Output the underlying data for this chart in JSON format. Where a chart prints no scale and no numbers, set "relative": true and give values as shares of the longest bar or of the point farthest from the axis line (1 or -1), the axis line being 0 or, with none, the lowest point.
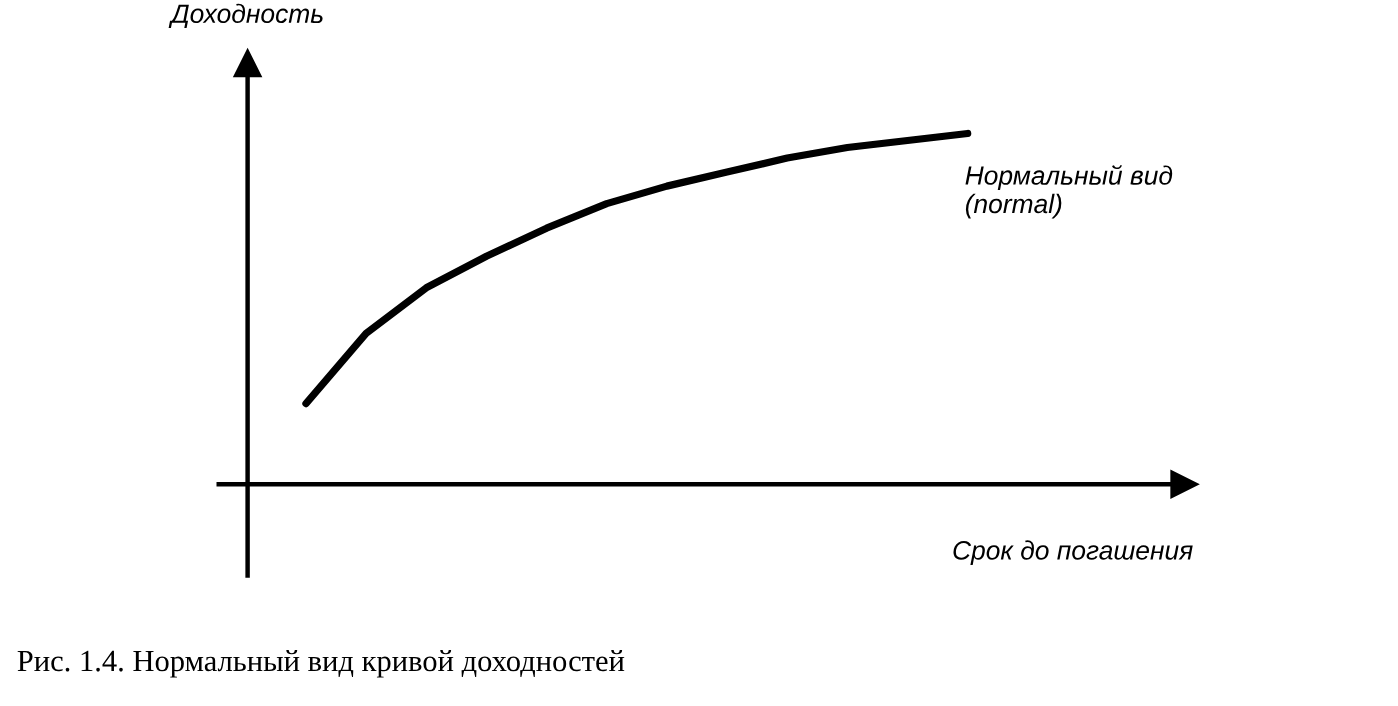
{
  "chart_data": {
    "type": "line",
    "relative": true,
    "ylabel": "Доходность",
    "xlabel": "Срок до погашения",
    "title": "Рис. 1.4. Нормальный вид кривой доходностей",
    "categories": [
      null,
      null,
      null,
      null,
      null,
      null,
      null,
      null,
      null,
      null,
      null,
      null
    ],
    "series": [
      {
        "name": "Нормальный вид\n(normal)",
        "color": "#000000",
        "values": [
          0.23,
          0.43,
          0.56,
          0.65,
          0.73,
          0.8,
          0.85,
          0.89,
          0.93,
          0.96,
          0.98,
          1.0
        ]
      }
    ],
    "marker": "none",
    "line_style": "solid"
  }
}
